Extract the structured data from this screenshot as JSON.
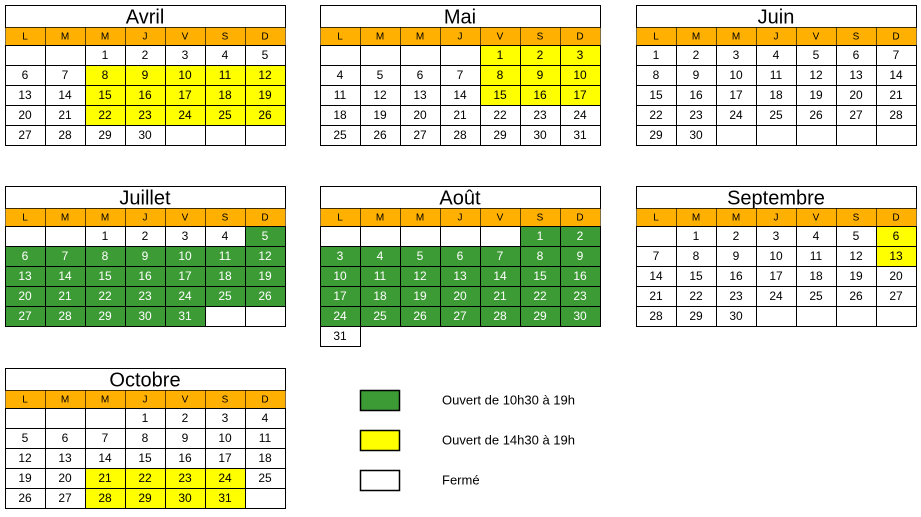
{
  "weekdays": [
    "L",
    "M",
    "M",
    "J",
    "V",
    "S",
    "D"
  ],
  "colors": {
    "header": "#ffb000",
    "green": "#3d9b35",
    "yellow": "#ffff00",
    "white": "#ffffff"
  },
  "months": [
    {
      "name": "Avril",
      "rows": [
        [
          null,
          null,
          1,
          2,
          3,
          4,
          5
        ],
        [
          6,
          7,
          8,
          9,
          10,
          11,
          12
        ],
        [
          13,
          14,
          15,
          16,
          17,
          18,
          19
        ],
        [
          20,
          21,
          22,
          23,
          24,
          25,
          26
        ],
        [
          27,
          28,
          29,
          30,
          null,
          null,
          null
        ]
      ],
      "fills": [
        [
          "white",
          "white",
          "white",
          "white",
          "white",
          "white",
          "white"
        ],
        [
          "white",
          "white",
          "yellow",
          "yellow",
          "yellow",
          "yellow",
          "yellow"
        ],
        [
          "white",
          "white",
          "yellow",
          "yellow",
          "yellow",
          "yellow",
          "yellow"
        ],
        [
          "white",
          "white",
          "yellow",
          "yellow",
          "yellow",
          "yellow",
          "yellow"
        ],
        [
          "white",
          "white",
          "white",
          "white",
          "white",
          "white",
          "white"
        ]
      ]
    },
    {
      "name": "Mai",
      "rows": [
        [
          null,
          null,
          null,
          null,
          1,
          2,
          3
        ],
        [
          4,
          5,
          6,
          7,
          8,
          9,
          10
        ],
        [
          11,
          12,
          13,
          14,
          15,
          16,
          17
        ],
        [
          18,
          19,
          20,
          21,
          22,
          23,
          24
        ],
        [
          25,
          26,
          27,
          28,
          29,
          30,
          31
        ]
      ],
      "fills": [
        [
          "white",
          "white",
          "white",
          "white",
          "yellow",
          "yellow",
          "yellow"
        ],
        [
          "white",
          "white",
          "white",
          "white",
          "yellow",
          "yellow",
          "yellow"
        ],
        [
          "white",
          "white",
          "white",
          "white",
          "yellow",
          "yellow",
          "yellow"
        ],
        [
          "white",
          "white",
          "white",
          "white",
          "white",
          "white",
          "white"
        ],
        [
          "white",
          "white",
          "white",
          "white",
          "white",
          "white",
          "white"
        ]
      ]
    },
    {
      "name": "Juin",
      "rows": [
        [
          1,
          2,
          3,
          4,
          5,
          6,
          7
        ],
        [
          8,
          9,
          10,
          11,
          12,
          13,
          14
        ],
        [
          15,
          16,
          17,
          18,
          19,
          20,
          21
        ],
        [
          22,
          23,
          24,
          25,
          26,
          27,
          28
        ],
        [
          29,
          30,
          null,
          null,
          null,
          null,
          null
        ]
      ],
      "fills": [
        [
          "white",
          "white",
          "white",
          "white",
          "white",
          "white",
          "white"
        ],
        [
          "white",
          "white",
          "white",
          "white",
          "white",
          "white",
          "white"
        ],
        [
          "white",
          "white",
          "white",
          "white",
          "white",
          "white",
          "white"
        ],
        [
          "white",
          "white",
          "white",
          "white",
          "white",
          "white",
          "white"
        ],
        [
          "white",
          "white",
          "white",
          "white",
          "white",
          "white",
          "white"
        ]
      ]
    },
    {
      "name": "Juillet",
      "rows": [
        [
          null,
          null,
          1,
          2,
          3,
          4,
          5
        ],
        [
          6,
          7,
          8,
          9,
          10,
          11,
          12
        ],
        [
          13,
          14,
          15,
          16,
          17,
          18,
          19
        ],
        [
          20,
          21,
          22,
          23,
          24,
          25,
          26
        ],
        [
          27,
          28,
          29,
          30,
          31,
          null,
          null
        ]
      ],
      "fills": [
        [
          "white",
          "white",
          "white",
          "white",
          "white",
          "white",
          "green"
        ],
        [
          "green",
          "green",
          "green",
          "green",
          "green",
          "green",
          "green"
        ],
        [
          "green",
          "green",
          "green",
          "green",
          "green",
          "green",
          "green"
        ],
        [
          "green",
          "green",
          "green",
          "green",
          "green",
          "green",
          "green"
        ],
        [
          "green",
          "green",
          "green",
          "green",
          "green",
          "white",
          "white"
        ]
      ]
    },
    {
      "name": "Août",
      "rows": [
        [
          null,
          null,
          null,
          null,
          null,
          1,
          2
        ],
        [
          3,
          4,
          5,
          6,
          7,
          8,
          9
        ],
        [
          10,
          11,
          12,
          13,
          14,
          15,
          16
        ],
        [
          17,
          18,
          19,
          20,
          21,
          22,
          23
        ],
        [
          24,
          25,
          26,
          27,
          28,
          29,
          30
        ],
        [
          31
        ]
      ],
      "fills": [
        [
          "white",
          "white",
          "white",
          "white",
          "white",
          "green",
          "green"
        ],
        [
          "green",
          "green",
          "green",
          "green",
          "green",
          "green",
          "green"
        ],
        [
          "green",
          "green",
          "green",
          "green",
          "green",
          "green",
          "green"
        ],
        [
          "green",
          "green",
          "green",
          "green",
          "green",
          "green",
          "green"
        ],
        [
          "green",
          "green",
          "green",
          "green",
          "green",
          "green",
          "green"
        ],
        [
          "white"
        ]
      ]
    },
    {
      "name": "Septembre",
      "rows": [
        [
          null,
          1,
          2,
          3,
          4,
          5,
          6
        ],
        [
          7,
          8,
          9,
          10,
          11,
          12,
          13
        ],
        [
          14,
          15,
          16,
          17,
          18,
          19,
          20
        ],
        [
          21,
          22,
          23,
          24,
          25,
          26,
          27
        ],
        [
          28,
          29,
          30,
          null,
          null,
          null,
          null
        ]
      ],
      "fills": [
        [
          "white",
          "white",
          "white",
          "white",
          "white",
          "white",
          "yellow"
        ],
        [
          "white",
          "white",
          "white",
          "white",
          "white",
          "white",
          "yellow"
        ],
        [
          "white",
          "white",
          "white",
          "white",
          "white",
          "white",
          "white"
        ],
        [
          "white",
          "white",
          "white",
          "white",
          "white",
          "white",
          "white"
        ],
        [
          "white",
          "white",
          "white",
          "white",
          "white",
          "white",
          "white"
        ]
      ]
    },
    {
      "name": "Octobre",
      "rows": [
        [
          null,
          null,
          null,
          1,
          2,
          3,
          4
        ],
        [
          5,
          6,
          7,
          8,
          9,
          10,
          11
        ],
        [
          12,
          13,
          14,
          15,
          16,
          17,
          18
        ],
        [
          19,
          20,
          21,
          22,
          23,
          24,
          25
        ],
        [
          26,
          27,
          28,
          29,
          30,
          31,
          null
        ]
      ],
      "fills": [
        [
          "white",
          "white",
          "white",
          "white",
          "white",
          "white",
          "white"
        ],
        [
          "white",
          "white",
          "white",
          "white",
          "white",
          "white",
          "white"
        ],
        [
          "white",
          "white",
          "white",
          "white",
          "white",
          "white",
          "white"
        ],
        [
          "white",
          "white",
          "yellow",
          "yellow",
          "yellow",
          "yellow",
          "white"
        ],
        [
          "white",
          "white",
          "yellow",
          "yellow",
          "yellow",
          "yellow",
          "white"
        ]
      ]
    }
  ],
  "legend": [
    {
      "label": "Ouvert de 10h30 à 19h",
      "fill": "green"
    },
    {
      "label": "Ouvert de 14h30 à 19h",
      "fill": "yellow"
    },
    {
      "label": "Fermé",
      "fill": "white"
    }
  ]
}
